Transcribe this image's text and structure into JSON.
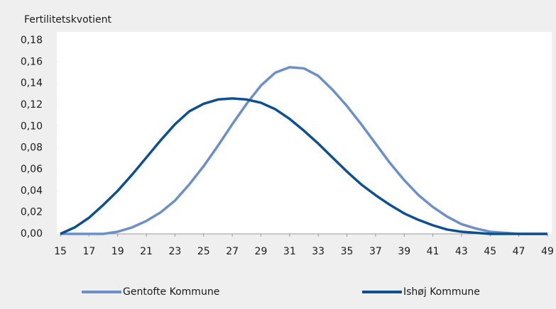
{
  "chart_data": {
    "type": "line",
    "y_label": "Fertilitetskvotient",
    "x": [
      15,
      16,
      17,
      18,
      19,
      20,
      21,
      22,
      23,
      24,
      25,
      26,
      27,
      28,
      29,
      30,
      31,
      32,
      33,
      34,
      35,
      36,
      37,
      38,
      39,
      40,
      41,
      42,
      43,
      44,
      45,
      46,
      47,
      48,
      49
    ],
    "series": [
      {
        "name": "Gentofte Kommune",
        "color": "#6b8fc9",
        "values": [
          0,
          0,
          0,
          0,
          0.002,
          0.006,
          0.012,
          0.02,
          0.031,
          0.046,
          0.063,
          0.082,
          0.102,
          0.121,
          0.138,
          0.15,
          0.155,
          0.154,
          0.147,
          0.134,
          0.119,
          0.102,
          0.084,
          0.066,
          0.05,
          0.036,
          0.025,
          0.016,
          0.009,
          0.005,
          0.002,
          0.001,
          0,
          0,
          0
        ]
      },
      {
        "name": "Ishøj Kommune",
        "color": "#0d4f8f",
        "values": [
          0,
          0.006,
          0.015,
          0.027,
          0.04,
          0.055,
          0.071,
          0.087,
          0.102,
          0.114,
          0.121,
          0.125,
          0.126,
          0.125,
          0.122,
          0.116,
          0.107,
          0.096,
          0.084,
          0.071,
          0.058,
          0.046,
          0.036,
          0.027,
          0.019,
          0.013,
          0.008,
          0.004,
          0.002,
          0.001,
          0,
          0,
          0,
          0,
          0
        ]
      }
    ],
    "xlim": [
      15,
      49
    ],
    "xticks": [
      15,
      17,
      19,
      21,
      23,
      25,
      27,
      29,
      31,
      33,
      35,
      37,
      39,
      41,
      43,
      45,
      47,
      49
    ],
    "ylim": [
      0,
      0.18
    ],
    "yticks": [
      {
        "value": 0,
        "label": "0,00"
      },
      {
        "value": 0.02,
        "label": "0,02"
      },
      {
        "value": 0.04,
        "label": "0,04"
      },
      {
        "value": 0.06,
        "label": "0,06"
      },
      {
        "value": 0.08,
        "label": "0,08"
      },
      {
        "value": 0.1,
        "label": "0,10"
      },
      {
        "value": 0.12,
        "label": "0,12"
      },
      {
        "value": 0.14,
        "label": "0,14"
      },
      {
        "value": 0.16,
        "label": "0,16"
      },
      {
        "value": 0.18,
        "label": "0,18"
      }
    ],
    "legend": "bottom"
  }
}
